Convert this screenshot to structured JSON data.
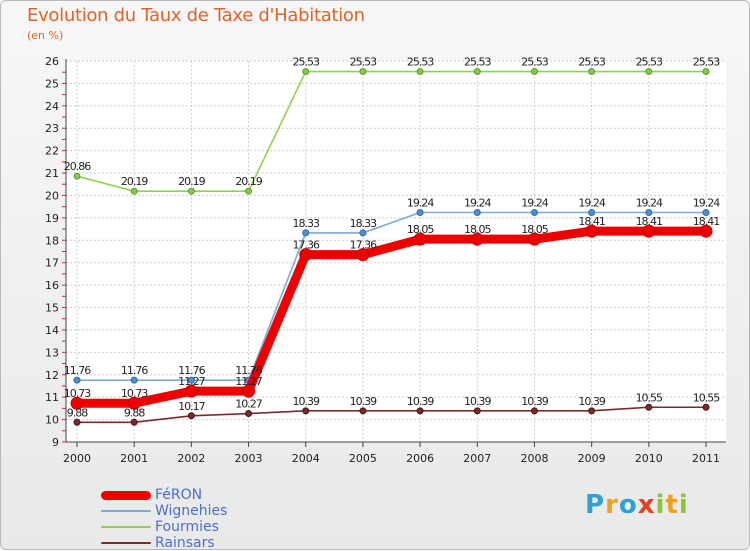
{
  "title": "Evolution du Taux de Taxe d'Habitation",
  "subtitle": "(en %)",
  "logo": {
    "letters": [
      {
        "ch": "P",
        "color": "#2f9fd6"
      },
      {
        "ch": "r",
        "color": "#f0a020"
      },
      {
        "ch": "o",
        "color": "#2f9fd6"
      },
      {
        "ch": "x",
        "color": "#e8401c"
      },
      {
        "ch": "i",
        "color": "#8cc63e"
      },
      {
        "ch": "t",
        "color": "#f0a020"
      },
      {
        "ch": "i",
        "color": "#8cc63e"
      }
    ]
  },
  "chart_data": {
    "type": "line",
    "title": "Evolution du Taux de Taxe d'Habitation",
    "ylabel": "(en %)",
    "xlabel": "",
    "ylim": [
      9,
      26
    ],
    "yticks": [
      "9",
      "10",
      "11",
      "12",
      "13",
      "14",
      "15",
      "16",
      "17",
      "18",
      "19",
      "20",
      "21",
      "22",
      "23",
      "24",
      "25",
      "26"
    ],
    "categories": [
      "2000",
      "2001",
      "2002",
      "2003",
      "2004",
      "2005",
      "2006",
      "2007",
      "2008",
      "2009",
      "2010",
      "2011"
    ],
    "grid": true,
    "legend_position": "bottom-left",
    "series": [
      {
        "name": "Fourmies",
        "color": "#8fd14f",
        "markerFill": "#86c94a",
        "markerStroke": "#5f9a2d",
        "values": [
          20.86,
          20.19,
          20.19,
          20.19,
          25.53,
          25.53,
          25.53,
          25.53,
          25.53,
          25.53,
          25.53,
          25.53
        ],
        "labels": [
          "20.86",
          "20.19",
          "20.19",
          "20.19",
          "25.53",
          "25.53",
          "25.53",
          "25.53",
          "25.53",
          "25.53",
          "25.53",
          "25.53"
        ]
      },
      {
        "name": "Wignehies",
        "color": "#7da9d3",
        "markerFill": "#4f8fd0",
        "markerStroke": "#2f6aa8",
        "values": [
          11.76,
          11.76,
          11.76,
          11.76,
          18.33,
          18.33,
          19.24,
          19.24,
          19.24,
          19.24,
          19.24,
          19.24
        ],
        "labels": [
          "11.76",
          "11.76",
          "11.76",
          "11.76",
          "18.33",
          "18.33",
          "19.24",
          "19.24",
          "19.24",
          "19.24",
          "19.24",
          "19.24"
        ]
      },
      {
        "name": "Rainsars",
        "color": "#7a2a2a",
        "markerFill": "#7a2a2a",
        "markerStroke": "#4d1414",
        "values": [
          9.88,
          9.88,
          10.17,
          10.27,
          10.39,
          10.39,
          10.39,
          10.39,
          10.39,
          10.39,
          10.55,
          10.55
        ],
        "labels": [
          "9.88",
          "9.88",
          "10.17",
          "10.27",
          "10.39",
          "10.39",
          "10.39",
          "10.39",
          "10.39",
          "10.39",
          "10.55",
          "10.55"
        ]
      },
      {
        "name": "FéRON",
        "color": "#ee0000",
        "markerFill": "#ee0000",
        "markerStroke": "#cc0000",
        "values": [
          10.73,
          10.73,
          11.27,
          11.27,
          17.36,
          17.36,
          18.05,
          18.05,
          18.05,
          18.41,
          18.41,
          18.41
        ],
        "labels": [
          "10.73",
          "10.73",
          "11.27",
          "11.27",
          "17.36",
          "17.36",
          "18.05",
          "18.05",
          "18.05",
          "18.41",
          "18.41",
          "18.41"
        ]
      }
    ],
    "legend": [
      {
        "name": "FéRON",
        "color": "#ee0000",
        "thick": true
      },
      {
        "name": "Wignehies",
        "color": "#7da9d3",
        "thick": false
      },
      {
        "name": "Fourmies",
        "color": "#8fd14f",
        "thick": false
      },
      {
        "name": "Rainsars",
        "color": "#7a2a2a",
        "thick": false
      }
    ]
  }
}
